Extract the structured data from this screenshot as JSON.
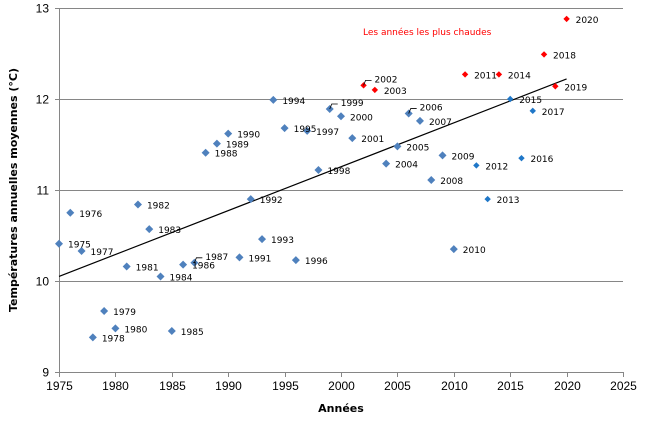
{
  "chart_data": {
    "type": "scatter",
    "title": "",
    "xlabel": "Années",
    "ylabel": "Températures annuelles moyennes (°C)",
    "xlim": [
      1975,
      2025
    ],
    "ylim": [
      9,
      13
    ],
    "xticks": [
      1975,
      1980,
      1985,
      1990,
      1995,
      2000,
      2005,
      2010,
      2015,
      2020,
      2025
    ],
    "yticks": [
      9,
      10,
      11,
      12,
      13
    ],
    "grid": "horizontal",
    "annotation": {
      "text": "Les années les plus chaudes",
      "color": "#ff0000"
    },
    "trendline": {
      "type": "linear",
      "x": [
        1975,
        2020
      ],
      "y": [
        10.05,
        12.22
      ],
      "color": "#000000"
    },
    "colors": {
      "normal": "#4f81bd",
      "normal_recent": "#1f77c8",
      "hot": "#ff0000"
    },
    "points": [
      {
        "year": 1975,
        "value": 10.41,
        "label": "1975",
        "group": "normal"
      },
      {
        "year": 1976,
        "value": 10.75,
        "label": "1976",
        "group": "normal"
      },
      {
        "year": 1977,
        "value": 10.33,
        "label": "1977",
        "group": "normal"
      },
      {
        "year": 1978,
        "value": 9.38,
        "label": "1978",
        "group": "normal"
      },
      {
        "year": 1979,
        "value": 9.67,
        "label": "1979",
        "group": "normal"
      },
      {
        "year": 1980,
        "value": 9.48,
        "label": "1980",
        "group": "normal"
      },
      {
        "year": 1981,
        "value": 10.16,
        "label": "1981",
        "group": "normal"
      },
      {
        "year": 1982,
        "value": 10.84,
        "label": "1982",
        "group": "normal"
      },
      {
        "year": 1983,
        "value": 10.57,
        "label": "1983",
        "group": "normal"
      },
      {
        "year": 1984,
        "value": 10.05,
        "label": "1984",
        "group": "normal"
      },
      {
        "year": 1985,
        "value": 9.45,
        "label": "1985",
        "group": "normal"
      },
      {
        "year": 1986,
        "value": 10.18,
        "label": "1986",
        "group": "normal"
      },
      {
        "year": 1987,
        "value": 10.2,
        "label": "1987",
        "group": "normal"
      },
      {
        "year": 1988,
        "value": 11.41,
        "label": "1988",
        "group": "normal"
      },
      {
        "year": 1989,
        "value": 11.51,
        "label": "1989",
        "group": "normal"
      },
      {
        "year": 1990,
        "value": 11.62,
        "label": "1990",
        "group": "normal"
      },
      {
        "year": 1991,
        "value": 10.26,
        "label": "1991",
        "group": "normal"
      },
      {
        "year": 1992,
        "value": 10.9,
        "label": "1992",
        "group": "normal"
      },
      {
        "year": 1993,
        "value": 10.46,
        "label": "1993",
        "group": "normal"
      },
      {
        "year": 1994,
        "value": 11.99,
        "label": "1994",
        "group": "normal"
      },
      {
        "year": 1995,
        "value": 11.68,
        "label": "1995",
        "group": "normal"
      },
      {
        "year": 1996,
        "value": 10.23,
        "label": "1996",
        "group": "normal"
      },
      {
        "year": 1997,
        "value": 11.65,
        "label": "1997",
        "group": "normal"
      },
      {
        "year": 1998,
        "value": 11.22,
        "label": "1998",
        "group": "normal"
      },
      {
        "year": 1999,
        "value": 11.89,
        "label": "1999",
        "group": "normal"
      },
      {
        "year": 2000,
        "value": 11.81,
        "label": "2000",
        "group": "normal"
      },
      {
        "year": 2001,
        "value": 11.57,
        "label": "2001",
        "group": "normal"
      },
      {
        "year": 2002,
        "value": 12.15,
        "label": "2002",
        "group": "hot"
      },
      {
        "year": 2003,
        "value": 12.1,
        "label": "2003",
        "group": "hot"
      },
      {
        "year": 2004,
        "value": 11.29,
        "label": "2004",
        "group": "normal"
      },
      {
        "year": 2005,
        "value": 11.48,
        "label": "2005",
        "group": "normal"
      },
      {
        "year": 2006,
        "value": 11.84,
        "label": "2006",
        "group": "normal"
      },
      {
        "year": 2007,
        "value": 11.76,
        "label": "2007",
        "group": "normal"
      },
      {
        "year": 2008,
        "value": 11.11,
        "label": "2008",
        "group": "normal"
      },
      {
        "year": 2009,
        "value": 11.38,
        "label": "2009",
        "group": "normal"
      },
      {
        "year": 2010,
        "value": 10.35,
        "label": "2010",
        "group": "normal"
      },
      {
        "year": 2011,
        "value": 12.27,
        "label": "2011",
        "group": "hot"
      },
      {
        "year": 2012,
        "value": 11.27,
        "label": "2012",
        "group": "normal_recent"
      },
      {
        "year": 2013,
        "value": 10.9,
        "label": "2013",
        "group": "normal_recent"
      },
      {
        "year": 2014,
        "value": 12.27,
        "label": "2014",
        "group": "hot"
      },
      {
        "year": 2015,
        "value": 12.0,
        "label": "2015",
        "group": "normal_recent"
      },
      {
        "year": 2016,
        "value": 11.35,
        "label": "2016",
        "group": "normal_recent"
      },
      {
        "year": 2017,
        "value": 11.87,
        "label": "2017",
        "group": "normal_recent"
      },
      {
        "year": 2018,
        "value": 12.49,
        "label": "2018",
        "group": "hot"
      },
      {
        "year": 2019,
        "value": 12.14,
        "label": "2019",
        "group": "hot"
      },
      {
        "year": 2020,
        "value": 12.88,
        "label": "2020",
        "group": "hot"
      }
    ]
  }
}
